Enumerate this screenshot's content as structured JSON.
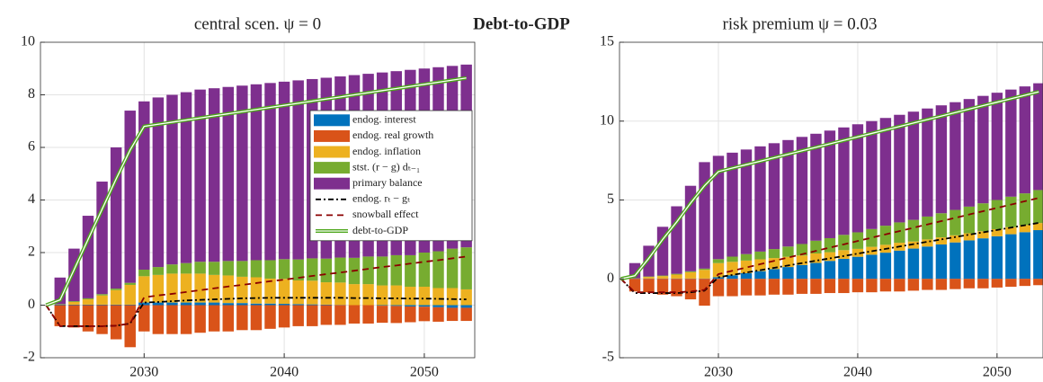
{
  "title": "Debt-to-GDP",
  "chart_data": [
    {
      "type": "bar",
      "title": "central scen. ψ = 0",
      "grid": true,
      "legend": "upper right",
      "x": [
        2023,
        2024,
        2025,
        2026,
        2027,
        2028,
        2029,
        2030,
        2031,
        2032,
        2033,
        2034,
        2035,
        2036,
        2037,
        2038,
        2039,
        2040,
        2041,
        2042,
        2043,
        2044,
        2045,
        2046,
        2047,
        2048,
        2049,
        2050,
        2051,
        2052,
        2053
      ],
      "xlim": [
        2022.6,
        2053.6
      ],
      "xticks": [
        2030,
        2040,
        2050
      ],
      "ylim": [
        -2,
        10
      ],
      "yticks": [
        -2,
        0,
        2,
        4,
        6,
        8,
        10
      ],
      "series": [
        {
          "name": "endog. interest",
          "type": "bar",
          "color": "#0072BD",
          "values": [
            null,
            0.02,
            0.02,
            0.02,
            0.02,
            0.02,
            0.02,
            0.1,
            0.1,
            0.1,
            0.1,
            0.1,
            0.1,
            0.08,
            0.08,
            0.06,
            0.06,
            0.05,
            0.04,
            0.03,
            0.02,
            0.01,
            0,
            0,
            -0.02,
            -0.03,
            -0.05,
            -0.06,
            -0.08,
            -0.1,
            -0.1
          ]
        },
        {
          "name": "endog. real growth",
          "type": "bar",
          "color": "#D95319",
          "values": [
            null,
            -0.8,
            -0.85,
            -1.0,
            -1.1,
            -1.3,
            -1.6,
            -1.0,
            -1.1,
            -1.1,
            -1.1,
            -1.05,
            -1.0,
            -1.0,
            -0.95,
            -0.95,
            -0.9,
            -0.85,
            -0.8,
            -0.8,
            -0.75,
            -0.75,
            -0.7,
            -0.7,
            -0.65,
            -0.65,
            -0.6,
            -0.55,
            -0.55,
            -0.5,
            -0.5
          ]
        },
        {
          "name": "endog. inflation",
          "type": "bar",
          "color": "#EDB120",
          "values": [
            null,
            0,
            0.1,
            0.2,
            0.35,
            0.55,
            0.75,
            1.0,
            1.05,
            1.1,
            1.1,
            1.1,
            1.05,
            1.05,
            1.0,
            1.0,
            0.95,
            0.95,
            0.9,
            0.9,
            0.85,
            0.85,
            0.8,
            0.8,
            0.75,
            0.75,
            0.7,
            0.7,
            0.65,
            0.65,
            0.6
          ]
        },
        {
          "name": "stst. (r − g) dₜ₋₁",
          "type": "bar",
          "color": "#77AC30",
          "values": [
            null,
            0.02,
            0.03,
            0.04,
            0.05,
            0.06,
            0.08,
            0.25,
            0.3,
            0.35,
            0.4,
            0.45,
            0.5,
            0.55,
            0.6,
            0.65,
            0.7,
            0.75,
            0.8,
            0.85,
            0.9,
            0.95,
            1.0,
            1.05,
            1.1,
            1.15,
            1.2,
            1.3,
            1.4,
            1.5,
            1.6
          ]
        },
        {
          "name": "primary balance",
          "type": "bar",
          "color": "#7E2F8E",
          "values": [
            null,
            1.01,
            2.0,
            3.14,
            4.28,
            5.37,
            6.55,
            6.4,
            6.45,
            6.45,
            6.5,
            6.55,
            6.6,
            6.62,
            6.67,
            6.69,
            6.74,
            6.75,
            6.81,
            6.82,
            6.88,
            6.89,
            6.95,
            6.95,
            7.0,
            7.0,
            7.05,
            7.0,
            7.0,
            6.95,
            6.95
          ]
        },
        {
          "name": "endog. rₜ − gₜ",
          "type": "line",
          "color": "#000000",
          "dash": "6 3 2 3",
          "values": [
            0,
            -0.8,
            -0.8,
            -0.8,
            -0.8,
            -0.78,
            -0.7,
            0.1,
            0.12,
            0.15,
            0.18,
            0.2,
            0.22,
            0.24,
            0.26,
            0.27,
            0.28,
            0.28,
            0.28,
            0.28,
            0.28,
            0.28,
            0.27,
            0.27,
            0.26,
            0.26,
            0.25,
            0.25,
            0.24,
            0.23,
            0.22
          ]
        },
        {
          "name": "snowball effect",
          "type": "line",
          "color": "#8B0000",
          "dash": "7 5",
          "values": [
            0,
            -0.8,
            -0.8,
            -0.8,
            -0.8,
            -0.78,
            -0.7,
            0.3,
            0.37,
            0.43,
            0.5,
            0.57,
            0.64,
            0.71,
            0.77,
            0.84,
            0.91,
            0.97,
            1.04,
            1.11,
            1.18,
            1.24,
            1.31,
            1.38,
            1.45,
            1.51,
            1.58,
            1.65,
            1.71,
            1.78,
            1.85
          ]
        },
        {
          "name": "debt-to-GDP",
          "type": "line",
          "color": "#4DA61B",
          "double": true,
          "values": [
            0,
            0.2,
            1.35,
            2.5,
            3.65,
            4.8,
            5.9,
            6.8,
            6.88,
            6.96,
            7.04,
            7.12,
            7.2,
            7.28,
            7.36,
            7.44,
            7.52,
            7.6,
            7.68,
            7.76,
            7.84,
            7.92,
            8.0,
            8.08,
            8.16,
            8.24,
            8.32,
            8.4,
            8.48,
            8.56,
            8.64
          ]
        }
      ]
    },
    {
      "type": "bar",
      "title": "risk premium ψ = 0.03",
      "grid": true,
      "x": [
        2023,
        2024,
        2025,
        2026,
        2027,
        2028,
        2029,
        2030,
        2031,
        2032,
        2033,
        2034,
        2035,
        2036,
        2037,
        2038,
        2039,
        2040,
        2041,
        2042,
        2043,
        2044,
        2045,
        2046,
        2047,
        2048,
        2049,
        2050,
        2051,
        2052,
        2053
      ],
      "xlim": [
        2022.9,
        2053.3
      ],
      "xticks": [
        2030,
        2040,
        2050
      ],
      "ylim": [
        -5,
        15
      ],
      "yticks": [
        -5,
        0,
        5,
        10,
        15
      ],
      "series": [
        {
          "name": "endog. interest",
          "type": "bar",
          "color": "#0072BD",
          "values": [
            null,
            0.02,
            0.02,
            0.02,
            0.02,
            0.02,
            0.02,
            0.1,
            0.23,
            0.36,
            0.49,
            0.62,
            0.75,
            0.88,
            1.01,
            1.14,
            1.27,
            1.4,
            1.53,
            1.66,
            1.79,
            1.92,
            2.05,
            2.18,
            2.31,
            2.44,
            2.57,
            2.7,
            2.83,
            2.96,
            3.09
          ]
        },
        {
          "name": "endog. real growth",
          "type": "bar",
          "color": "#D95319",
          "values": [
            null,
            -0.8,
            -0.85,
            -1.0,
            -1.1,
            -1.3,
            -1.7,
            -1.1,
            -1.1,
            -1.05,
            -1.05,
            -1.0,
            -1.0,
            -0.95,
            -0.95,
            -0.9,
            -0.9,
            -0.85,
            -0.85,
            -0.8,
            -0.8,
            -0.75,
            -0.7,
            -0.7,
            -0.65,
            -0.6,
            -0.6,
            -0.55,
            -0.5,
            -0.45,
            -0.4
          ]
        },
        {
          "name": "endog. inflation",
          "type": "bar",
          "color": "#EDB120",
          "values": [
            null,
            0,
            0.1,
            0.15,
            0.25,
            0.4,
            0.55,
            0.9,
            0.85,
            0.8,
            0.75,
            0.7,
            0.65,
            0.6,
            0.6,
            0.55,
            0.55,
            0.5,
            0.5,
            0.5,
            0.5,
            0.45,
            0.45,
            0.45,
            0.45,
            0.45,
            0.45,
            0.45,
            0.45,
            0.45,
            0.45
          ]
        },
        {
          "name": "stst. (r − g) dₜ₋₁",
          "type": "bar",
          "color": "#77AC30",
          "values": [
            null,
            0.02,
            0.03,
            0.04,
            0.05,
            0.06,
            0.08,
            0.25,
            0.33,
            0.41,
            0.49,
            0.57,
            0.65,
            0.73,
            0.81,
            0.89,
            0.97,
            1.05,
            1.13,
            1.21,
            1.29,
            1.37,
            1.45,
            1.53,
            1.61,
            1.69,
            1.77,
            1.85,
            1.93,
            2.01,
            2.09
          ]
        },
        {
          "name": "primary balance",
          "type": "bar",
          "color": "#7E2F8E",
          "values": [
            null,
            0.96,
            1.95,
            3.09,
            4.28,
            5.42,
            6.75,
            6.55,
            6.59,
            6.63,
            6.67,
            6.71,
            6.75,
            6.79,
            6.78,
            6.82,
            6.81,
            6.85,
            6.84,
            6.83,
            6.82,
            6.86,
            6.85,
            6.84,
            6.83,
            6.82,
            6.81,
            6.8,
            6.79,
            6.78,
            6.77
          ]
        },
        {
          "name": "endog. rₜ − gₜ",
          "type": "line",
          "color": "#000000",
          "dash": "6 3 2 3",
          "values": [
            0,
            -0.9,
            -0.9,
            -0.9,
            -0.9,
            -0.85,
            -0.75,
            0.1,
            0.25,
            0.4,
            0.55,
            0.7,
            0.85,
            1.0,
            1.15,
            1.3,
            1.45,
            1.6,
            1.75,
            1.9,
            2.05,
            2.2,
            2.35,
            2.5,
            2.65,
            2.8,
            2.95,
            3.1,
            3.25,
            3.4,
            3.55
          ]
        },
        {
          "name": "snowball effect",
          "type": "line",
          "color": "#8B0000",
          "dash": "7 5",
          "values": [
            0,
            -0.85,
            -0.85,
            -0.85,
            -0.85,
            -0.8,
            -0.7,
            0.3,
            0.51,
            0.72,
            0.93,
            1.14,
            1.35,
            1.56,
            1.77,
            1.98,
            2.19,
            2.4,
            2.61,
            2.82,
            3.03,
            3.24,
            3.45,
            3.66,
            3.87,
            4.08,
            4.29,
            4.5,
            4.71,
            4.92,
            5.13
          ]
        },
        {
          "name": "debt-to-GDP",
          "type": "line",
          "color": "#4DA61B",
          "double": true,
          "values": [
            0,
            0.2,
            1.3,
            2.5,
            3.6,
            4.8,
            5.9,
            6.8,
            7.02,
            7.24,
            7.46,
            7.68,
            7.9,
            8.12,
            8.34,
            8.56,
            8.78,
            9.0,
            9.22,
            9.44,
            9.66,
            9.88,
            10.1,
            10.32,
            10.54,
            10.76,
            10.98,
            11.2,
            11.42,
            11.64,
            11.86
          ]
        }
      ]
    }
  ]
}
